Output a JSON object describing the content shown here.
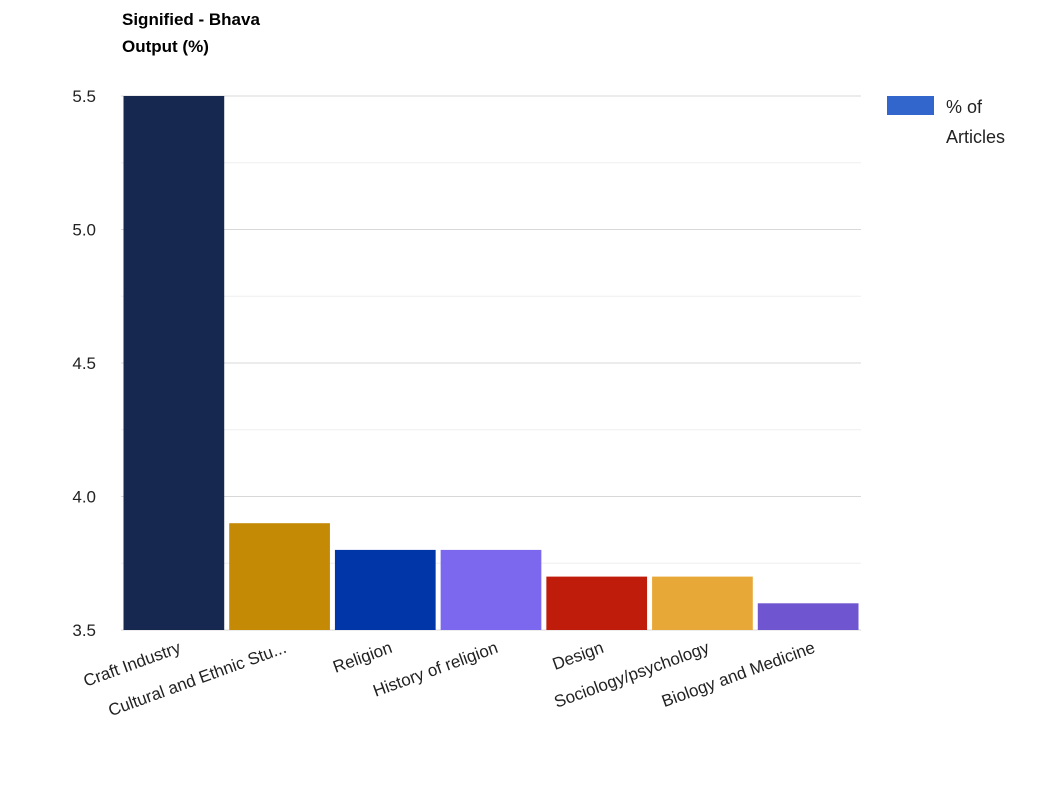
{
  "chart_data": {
    "type": "bar",
    "title_lines": [
      "Signified - Bhava",
      "Output (%)"
    ],
    "categories": [
      "Craft Industry",
      "Cultural and Ethnic Stu...",
      "Religion",
      "History of religion",
      "Design",
      "Sociology/psychology",
      "Biology and Medicine"
    ],
    "values": [
      5.5,
      3.9,
      3.8,
      3.8,
      3.7,
      3.7,
      3.6
    ],
    "bar_colors": [
      "#172850",
      "#c48a06",
      "#0036a8",
      "#7b68ee",
      "#c01c0c",
      "#e8a838",
      "#6f55d0"
    ],
    "ylim": [
      3.5,
      5.5
    ],
    "y_ticks": [
      "3.5",
      "4.0",
      "4.5",
      "5.0",
      "5.5"
    ],
    "grid": true,
    "legend": {
      "position": "right",
      "label_lines": [
        "% of",
        "Articles"
      ],
      "color": "#3366cc"
    }
  }
}
